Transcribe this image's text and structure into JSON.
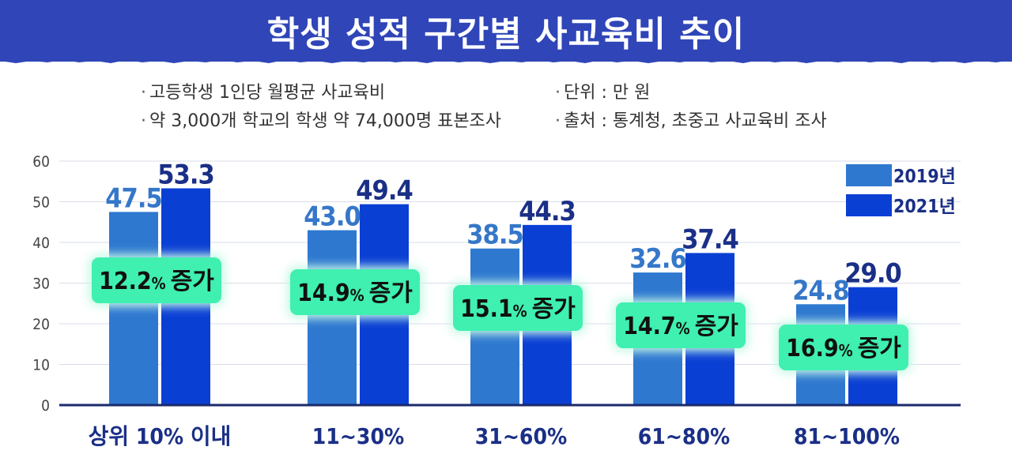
{
  "header": {
    "title": "학생 성적 구간별 사교육비 추이"
  },
  "notes": {
    "left": [
      "고등학생 1인당 월평균 사교육비",
      "약 3,000개 학교의 학생 약 74,000명 표본조사"
    ],
    "right": [
      "단위 : 만 원",
      "출처 : 통계청, 초중고 사교육비 조사"
    ]
  },
  "chart_data": {
    "type": "bar",
    "categories": [
      "상위 10% 이내",
      "11~30%",
      "31~60%",
      "61~80%",
      "81~100%"
    ],
    "series": [
      {
        "name": "2019년",
        "values": [
          47.5,
          43.0,
          38.5,
          32.6,
          24.8
        ],
        "color": "#2e78d0"
      },
      {
        "name": "2021년",
        "values": [
          53.3,
          49.4,
          44.3,
          37.4,
          29.0
        ],
        "color": "#0a3fd4"
      }
    ],
    "value_labels": [
      [
        "47.5",
        "43.0",
        "38.5",
        "32.6",
        "24.8"
      ],
      [
        "53.3",
        "49.4",
        "44.3",
        "37.4",
        "29.0"
      ]
    ],
    "annotations": [
      {
        "percent": "12.2",
        "unit": "%",
        "text": "증가"
      },
      {
        "percent": "14.9",
        "unit": "%",
        "text": "증가"
      },
      {
        "percent": "15.1",
        "unit": "%",
        "text": "증가"
      },
      {
        "percent": "14.7",
        "unit": "%",
        "text": "증가"
      },
      {
        "percent": "16.9",
        "unit": "%",
        "text": "증가"
      }
    ],
    "y_ticks": [
      "0",
      "10",
      "20",
      "30",
      "40",
      "50",
      "60"
    ],
    "ylim": [
      0,
      60
    ],
    "grid": true,
    "legend_position": "top-right",
    "colors": {
      "annotation_fill": "#3ff0b0",
      "annotation_glow": "#c6f9e6",
      "label_2019": "#3577c9",
      "label_2021": "#1a2f86",
      "axis": "#1b2a6b",
      "header_bg": "#2f45b8"
    }
  }
}
